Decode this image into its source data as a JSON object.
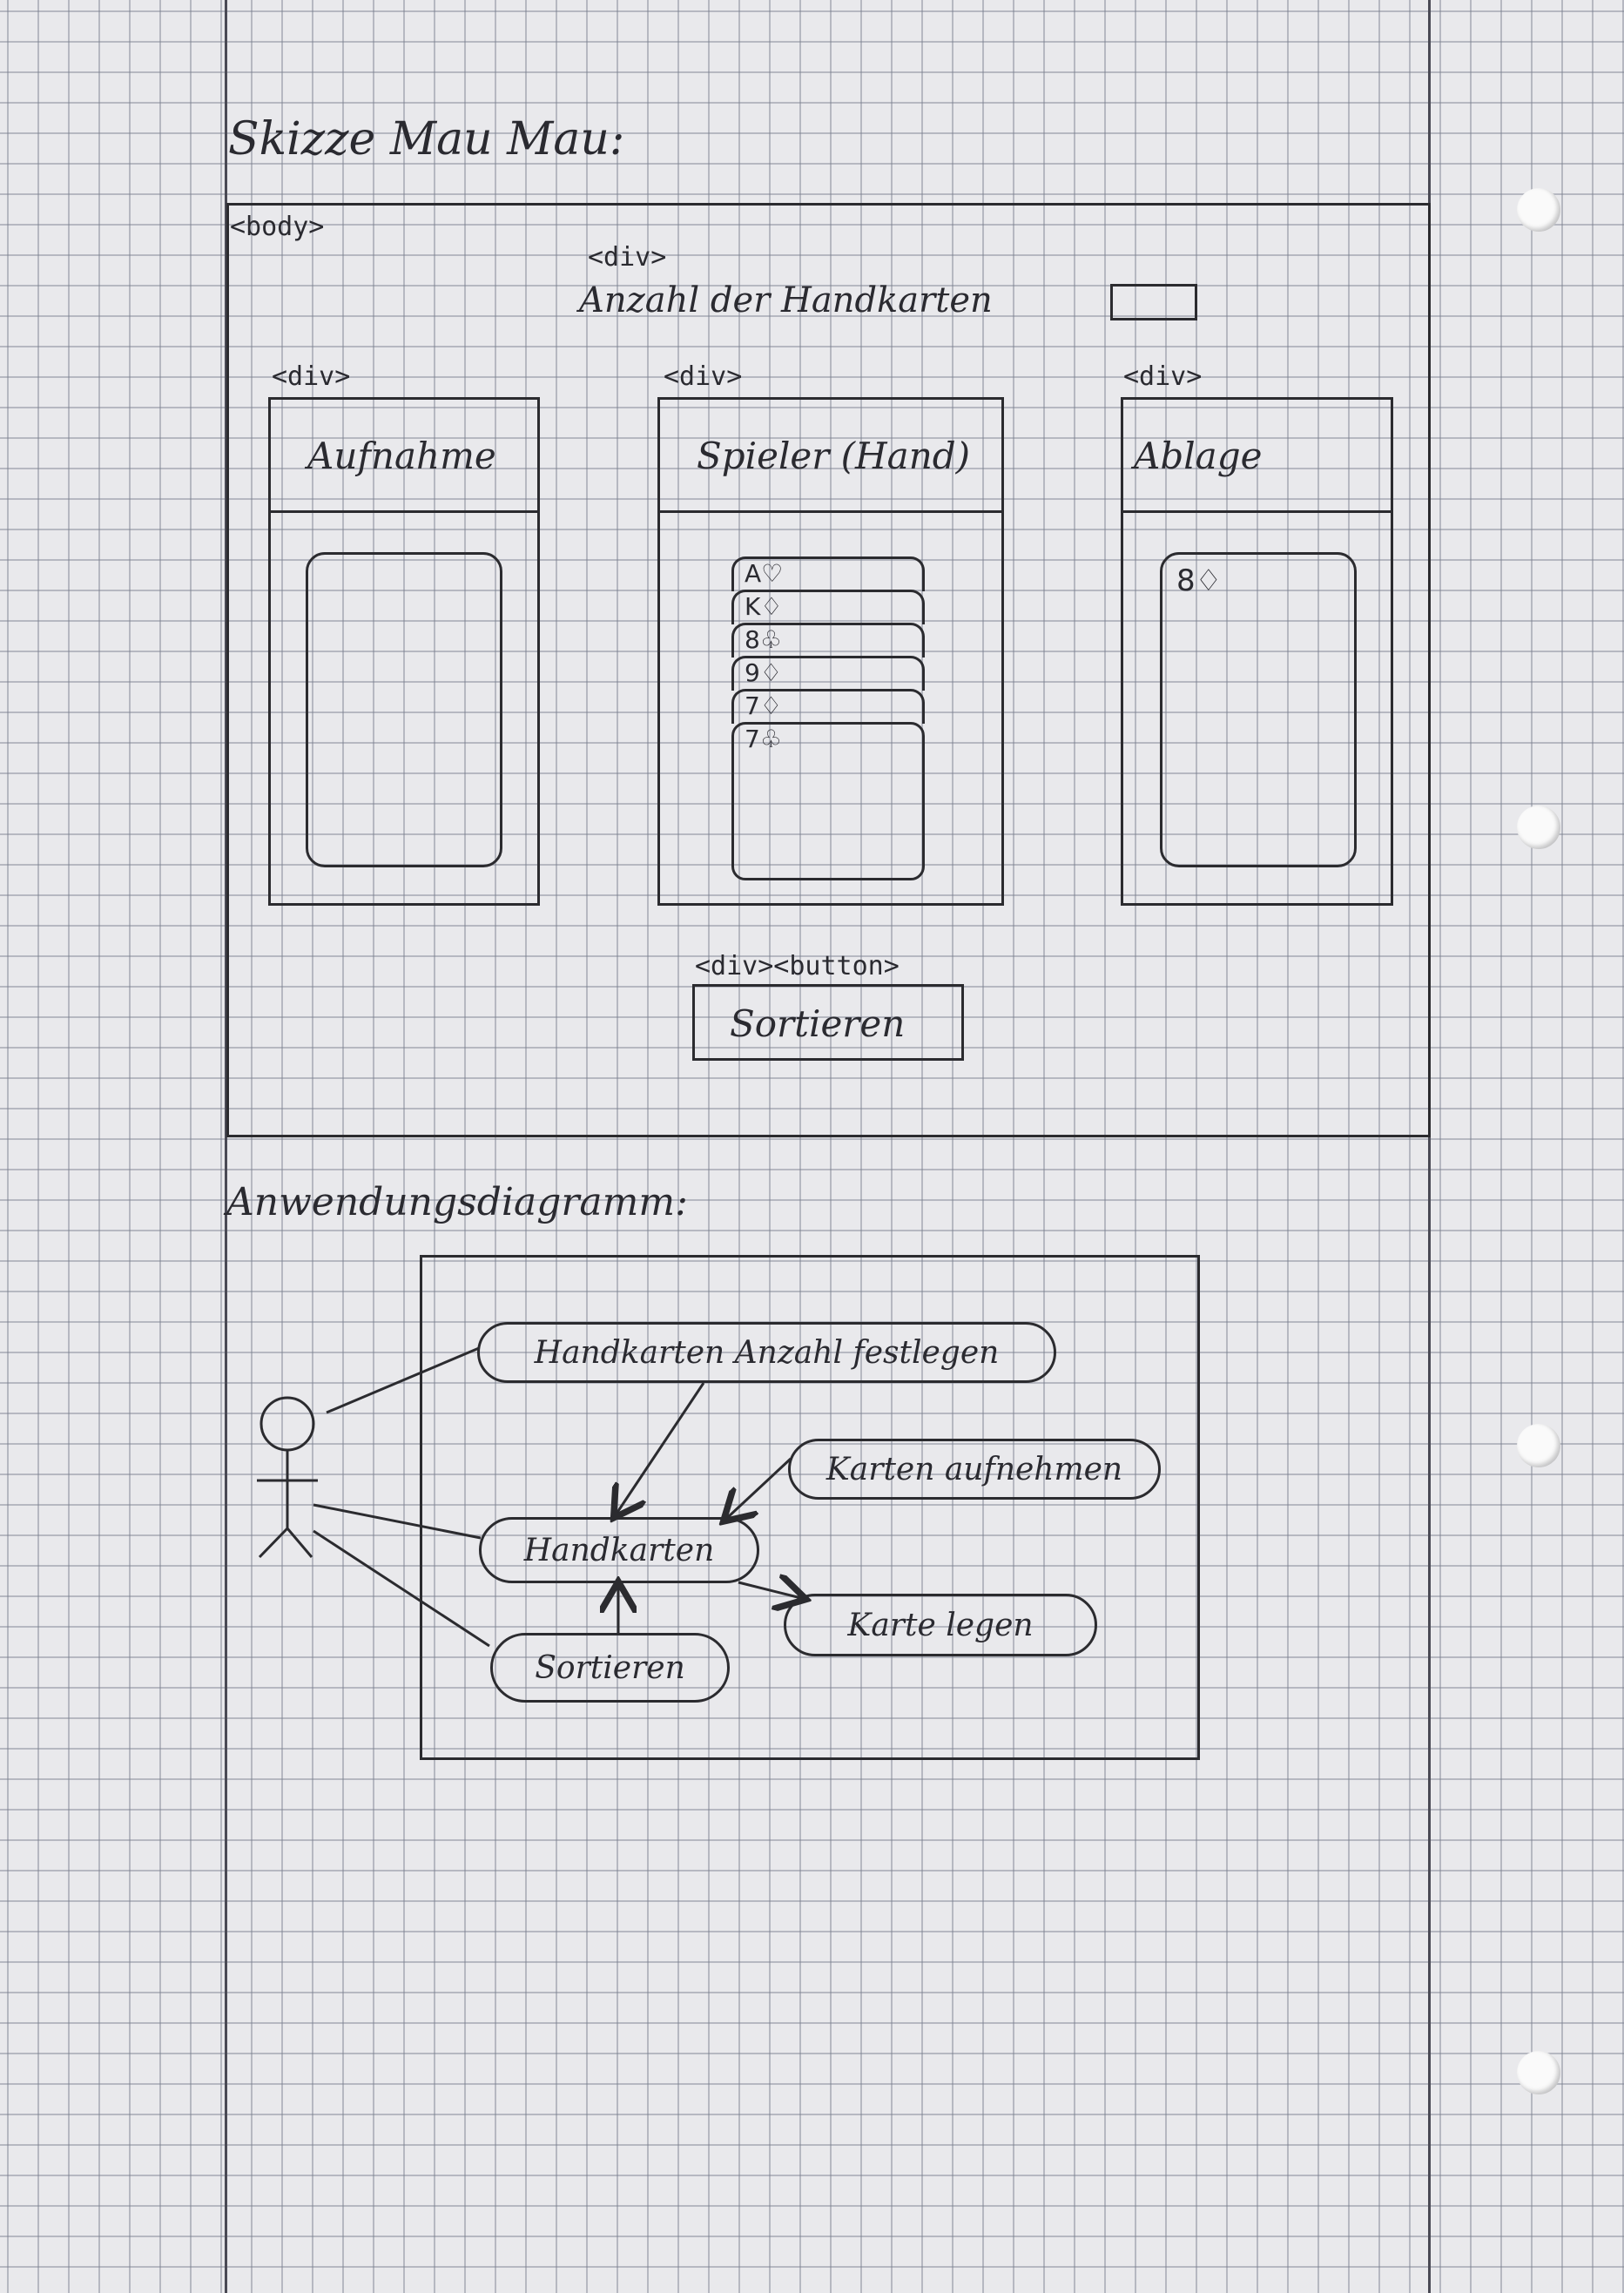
{
  "page": {
    "title": "Skizze Mau Mau:",
    "body_tag": "<body>"
  },
  "top_section": {
    "div_tag": "<div>",
    "label": "Anzahl der Handkarten"
  },
  "panels": [
    {
      "div_tag": "<div>",
      "heading": "Aufnahme",
      "cards": []
    },
    {
      "div_tag": "<div>",
      "heading": "Spieler (Hand)",
      "cards": [
        "A♡",
        "K♢",
        "8♧",
        "9♢",
        "7♢",
        "7♧"
      ]
    },
    {
      "div_tag": "<div>",
      "heading": "Ablage",
      "cards": [
        "8♢"
      ]
    }
  ],
  "sort_section": {
    "tag": "<div><button>",
    "button_label": "Sortieren"
  },
  "diagram": {
    "title": "Anwendungsdiagramm:",
    "use_cases": {
      "set_count": "Handkarten Anzahl festlegen",
      "pick_up": "Karten aufnehmen",
      "hand": "Handkarten",
      "play": "Karte legen",
      "sort": "Sortieren"
    }
  }
}
